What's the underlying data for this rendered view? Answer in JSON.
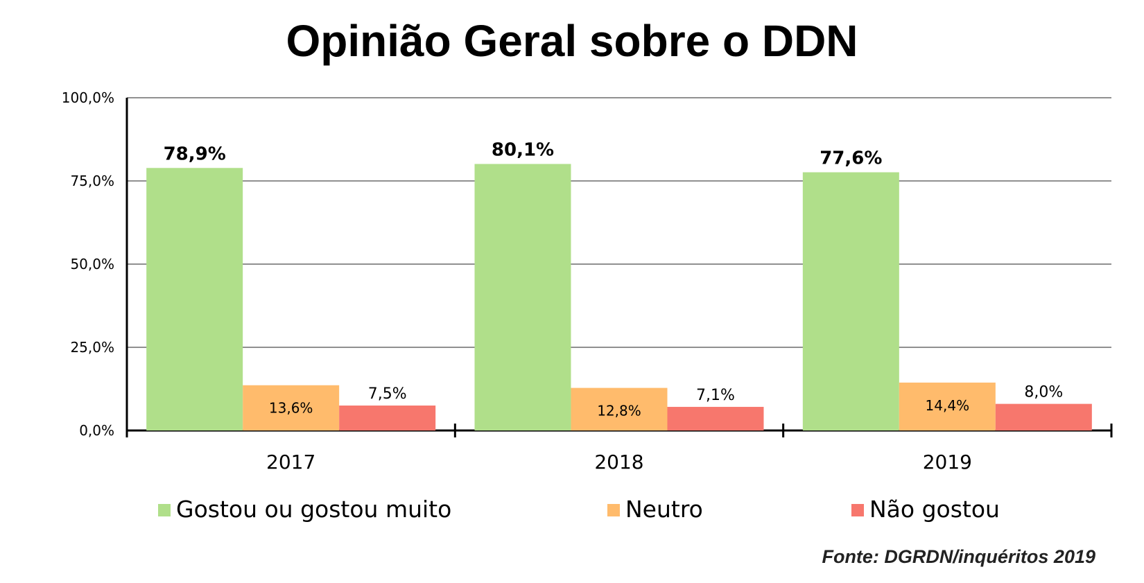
{
  "chart_data": {
    "type": "bar",
    "title": "Opinião Geral sobre o DDN",
    "source": "Fonte: DGRDN/inquéritos 2019",
    "categories": [
      "2017",
      "2018",
      "2019"
    ],
    "ylim": [
      0,
      100
    ],
    "yticks": [
      0,
      25,
      50,
      75,
      100
    ],
    "ytick_labels": [
      "0,0%",
      "25,0%",
      "50,0%",
      "75,0%",
      "100,0%"
    ],
    "grid": true,
    "legend_position": "bottom",
    "series": [
      {
        "name": "Gostou ou gostou muito",
        "color": "#b0df8a",
        "values": [
          78.9,
          80.1,
          77.6
        ],
        "labels": [
          "78,9%",
          "80,1%",
          "77,6%"
        ]
      },
      {
        "name": "Neutro",
        "color": "#ffbb6c",
        "values": [
          13.6,
          12.8,
          14.4
        ],
        "labels": [
          "13,6%",
          "12,8%",
          "14,4%"
        ]
      },
      {
        "name": "Não gostou",
        "color": "#f7776d",
        "values": [
          7.5,
          7.1,
          8.0
        ],
        "labels": [
          "7,5%",
          "7,1%",
          "8,0%"
        ]
      }
    ]
  }
}
